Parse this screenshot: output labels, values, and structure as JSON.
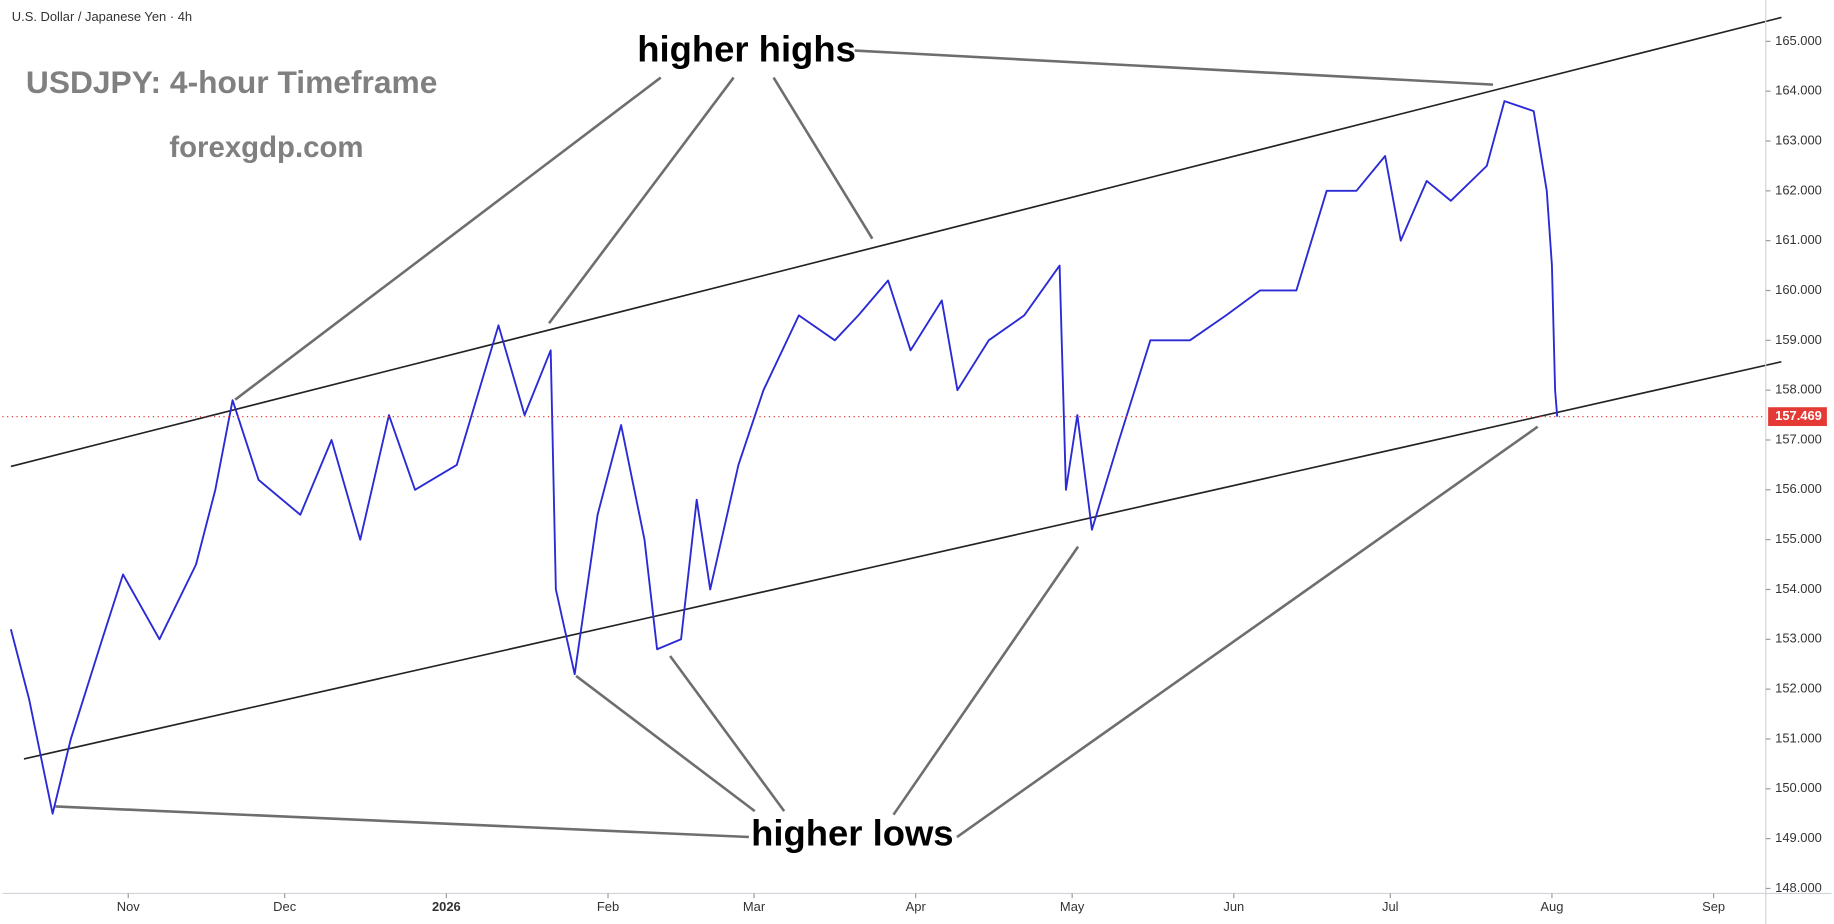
{
  "chart_data": {
    "type": "line",
    "symbol": "U.S. Dollar / Japanese Yen · 4h",
    "title": "USDJPY: 4-hour Timeframe",
    "subtitle": "forexgdp.com",
    "annotations": [
      "higher highs",
      "higher lows"
    ],
    "series": [
      {
        "name": "USDJPY",
        "color": "#2b2bd6",
        "x": [
          8.5,
          12,
          16.5,
          20,
          26,
          30,
          37,
          44,
          47.7,
          51,
          56,
          64,
          70,
          75.5,
          81,
          86,
          94,
          102,
          107,
          112,
          113,
          116.6,
          121,
          125.5,
          130,
          132.4,
          137,
          140,
          142.6,
          148,
          152.8,
          159.6,
          166.5,
          171,
          176.7,
          181,
          187,
          190,
          196,
          202.8,
          209.6,
          210.8,
          213,
          215.8,
          221,
          227,
          234.6,
          241.5,
          248,
          255,
          260.8,
          266.5,
          272,
          275,
          280,
          284.6,
          291.5,
          294.9,
          300.5,
          303,
          304,
          304.6,
          305
        ],
        "values": [
          153.2,
          151.8,
          149.5,
          151,
          153,
          154.3,
          153,
          154.5,
          156,
          157.8,
          156.2,
          155.5,
          157,
          155,
          157.5,
          156,
          156.5,
          159.3,
          157.5,
          158.8,
          154,
          152.3,
          155.5,
          157.3,
          155,
          152.8,
          153,
          155.8,
          154,
          156.5,
          158,
          159.5,
          159,
          159.5,
          160.2,
          158.8,
          159.8,
          158,
          159,
          159.5,
          160.5,
          156,
          157.5,
          155.2,
          157,
          159,
          159,
          159.5,
          160,
          160,
          162,
          162,
          162.7,
          161,
          162.2,
          161.8,
          162.5,
          163.8,
          163.6,
          162,
          160.5,
          158,
          157.469
        ]
      }
    ],
    "trendlines": [
      {
        "x": [
          8.5,
          348
        ],
        "y": [
          156.47,
          165.48
        ]
      },
      {
        "x": [
          11,
          348
        ],
        "y": [
          150.6,
          158.57
        ]
      }
    ],
    "last_price": 157.469,
    "xlim": [
      8,
      345
    ],
    "xticks": [
      {
        "value": 31,
        "label": "Nov"
      },
      {
        "value": 61,
        "label": "Dec"
      },
      {
        "value": 92,
        "label": "2026"
      },
      {
        "value": 123,
        "label": "Feb"
      },
      {
        "value": 151,
        "label": "Mar"
      },
      {
        "value": 182,
        "label": "Apr"
      },
      {
        "value": 212,
        "label": "May"
      },
      {
        "value": 243,
        "label": "Jun"
      },
      {
        "value": 273,
        "label": "Jul"
      },
      {
        "value": 304,
        "label": "Aug"
      },
      {
        "value": 335,
        "label": "Sep"
      }
    ],
    "ylim": [
      147.9,
      165.83
    ],
    "yticks": [
      {
        "value": 148,
        "label": "148.000"
      },
      {
        "value": 149,
        "label": "149.000"
      },
      {
        "value": 150,
        "label": "150.000"
      },
      {
        "value": 151,
        "label": "151.000"
      },
      {
        "value": 152,
        "label": "152.000"
      },
      {
        "value": 153,
        "label": "153.000"
      },
      {
        "value": 154,
        "label": "154.000"
      },
      {
        "value": 155,
        "label": "155.000"
      },
      {
        "value": 156,
        "label": "156.000"
      },
      {
        "value": 157,
        "label": "157.000"
      },
      {
        "value": 158,
        "label": "158.000"
      },
      {
        "value": 159,
        "label": "159.000"
      },
      {
        "value": 160,
        "label": "160.000"
      },
      {
        "value": 161,
        "label": "161.000"
      },
      {
        "value": 162,
        "label": "162.000"
      },
      {
        "value": 163,
        "label": "163.000"
      },
      {
        "value": 164,
        "label": "164.000"
      },
      {
        "value": 165,
        "label": "165.000"
      }
    ]
  }
}
